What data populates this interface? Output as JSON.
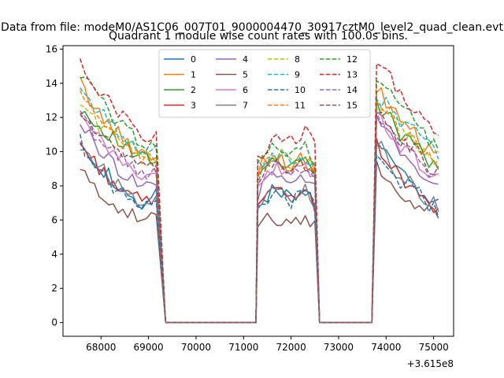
{
  "figure": {
    "suptitle": "Data from file: modeM0/AS1C06_007T01_9000004470_30917cztM0_level2_quad_clean.evt"
  },
  "chart_data": {
    "type": "line",
    "title": "Quadrant 1 module wise count rates with 100.0s bins.",
    "xlabel": "",
    "ylabel": "",
    "x_offset_label": "+3.615e8",
    "xlim": [
      67200,
      75420
    ],
    "ylim": [
      -0.8,
      16.2
    ],
    "xticks": [
      68000,
      69000,
      70000,
      71000,
      72000,
      73000,
      74000,
      75000
    ],
    "xtick_labels": [
      "68000",
      "69000",
      "70000",
      "71000",
      "72000",
      "73000",
      "74000",
      "75000"
    ],
    "yticks": [
      0,
      2,
      4,
      6,
      8,
      10,
      12,
      14,
      16
    ],
    "ytick_labels": [
      "0",
      "2",
      "4",
      "6",
      "8",
      "10",
      "12",
      "14",
      "16"
    ],
    "grid": false,
    "legend": {
      "placement": "top-center",
      "columns": 4
    },
    "segments": [
      {
        "start": 67560,
        "end": 69160
      },
      {
        "start": 71300,
        "end": 72500
      },
      {
        "start": 73800,
        "end": 75060
      }
    ],
    "zero_gaps": [
      {
        "start": 69360,
        "end": 71260
      },
      {
        "start": 72600,
        "end": 73700
      }
    ],
    "series": [
      {
        "name": "0",
        "color": "#1f77b4",
        "dash": false,
        "segments": [
          [
            10.9,
            9.4,
            8.5,
            7.3,
            6.8,
            7.4
          ],
          [
            6.5,
            7.6,
            7.8,
            7.2,
            8.0,
            7.0
          ],
          [
            10.9,
            9.8,
            8.5,
            8.3,
            7.2,
            6.8
          ]
        ]
      },
      {
        "name": "1",
        "color": "#ff7f0e",
        "dash": false,
        "segments": [
          [
            14.0,
            12.5,
            11.5,
            10.6,
            10.0,
            9.8
          ],
          [
            9.0,
            9.8,
            9.5,
            9.2,
            9.6,
            9.0
          ],
          [
            13.6,
            12.8,
            11.5,
            11.2,
            10.2,
            9.8
          ]
        ]
      },
      {
        "name": "2",
        "color": "#2ca02c",
        "dash": false,
        "segments": [
          [
            12.6,
            11.6,
            11.0,
            10.2,
            9.6,
            9.4
          ],
          [
            8.8,
            9.5,
            9.6,
            9.0,
            9.4,
            8.7
          ],
          [
            12.7,
            12.1,
            10.8,
            10.6,
            9.6,
            9.0
          ]
        ]
      },
      {
        "name": "3",
        "color": "#d62728",
        "dash": false,
        "segments": [
          [
            10.5,
            9.3,
            8.4,
            7.5,
            7.1,
            7.3
          ],
          [
            6.7,
            7.5,
            7.6,
            7.0,
            7.8,
            6.9
          ],
          [
            10.4,
            9.4,
            8.3,
            8.1,
            7.0,
            6.6
          ]
        ]
      },
      {
        "name": "4",
        "color": "#9467bd",
        "dash": false,
        "segments": [
          [
            11.7,
            10.4,
            9.5,
            8.6,
            8.1,
            8.2
          ],
          [
            7.6,
            8.4,
            8.6,
            8.0,
            8.6,
            7.8
          ],
          [
            11.8,
            11.0,
            9.6,
            9.4,
            8.4,
            8.0
          ]
        ]
      },
      {
        "name": "5",
        "color": "#8c564b",
        "dash": false,
        "segments": [
          [
            9.0,
            7.7,
            7.2,
            6.4,
            6.0,
            6.3
          ],
          [
            5.8,
            6.0,
            5.9,
            5.8,
            6.3,
            5.8
          ],
          [
            9.2,
            8.3,
            7.1,
            7.0,
            6.6,
            6.2
          ]
        ]
      },
      {
        "name": "6",
        "color": "#e377c2",
        "dash": false,
        "segments": [
          [
            12.0,
            10.9,
            10.0,
            9.2,
            8.6,
            8.6
          ],
          [
            8.2,
            8.9,
            9.0,
            8.6,
            9.1,
            8.3
          ],
          [
            12.1,
            11.3,
            10.0,
            9.8,
            8.8,
            8.4
          ]
        ]
      },
      {
        "name": "7",
        "color": "#7f7f7f",
        "dash": false,
        "segments": [
          [
            10.4,
            9.4,
            8.5,
            7.6,
            7.2,
            7.4
          ],
          [
            6.8,
            7.6,
            7.7,
            7.1,
            7.9,
            7.0
          ],
          [
            10.6,
            9.5,
            8.4,
            8.2,
            7.2,
            6.8
          ]
        ]
      },
      {
        "name": "8",
        "color": "#bcbd22",
        "dash": true,
        "segments": [
          [
            12.9,
            11.8,
            11.1,
            10.4,
            9.8,
            9.6
          ],
          [
            8.9,
            9.7,
            9.8,
            9.3,
            9.7,
            8.9
          ],
          [
            12.9,
            12.4,
            11.2,
            10.8,
            9.8,
            9.3
          ]
        ]
      },
      {
        "name": "9",
        "color": "#17becf",
        "dash": true,
        "segments": [
          [
            13.7,
            12.6,
            11.6,
            10.9,
            10.2,
            10.0
          ],
          [
            9.1,
            9.9,
            9.6,
            9.5,
            9.8,
            9.1
          ],
          [
            13.2,
            12.7,
            11.7,
            11.4,
            10.4,
            9.9
          ]
        ]
      },
      {
        "name": "10",
        "color": "#1f77b4",
        "dash": true,
        "segments": [
          [
            10.6,
            9.2,
            8.0,
            7.4,
            7.0,
            7.3
          ],
          [
            6.6,
            7.4,
            7.5,
            7.0,
            7.7,
            6.9
          ],
          [
            10.2,
            9.2,
            8.2,
            8.0,
            7.0,
            6.6
          ]
        ]
      },
      {
        "name": "11",
        "color": "#ff7f0e",
        "dash": true,
        "segments": [
          [
            13.3,
            12.0,
            11.0,
            10.2,
            9.7,
            9.6
          ],
          [
            8.7,
            9.6,
            9.3,
            9.0,
            9.3,
            8.7
          ],
          [
            13.0,
            12.5,
            11.1,
            10.8,
            9.8,
            9.4
          ]
        ]
      },
      {
        "name": "12",
        "color": "#2ca02c",
        "dash": true,
        "segments": [
          [
            14.6,
            13.5,
            12.1,
            11.4,
            10.6,
            10.4
          ],
          [
            9.3,
            10.0,
            10.2,
            10.0,
            10.5,
            9.4
          ],
          [
            14.3,
            13.7,
            12.5,
            12.0,
            10.9,
            10.4
          ]
        ]
      },
      {
        "name": "13",
        "color": "#d62728",
        "dash": true,
        "segments": [
          [
            15.0,
            14.0,
            12.8,
            11.9,
            11.0,
            10.8
          ],
          [
            9.6,
            10.6,
            10.8,
            10.6,
            11.2,
            10.4
          ],
          [
            15.3,
            14.5,
            13.1,
            12.6,
            11.5,
            11.0
          ]
        ]
      },
      {
        "name": "14",
        "color": "#9467bd",
        "dash": true,
        "segments": [
          [
            12.1,
            11.0,
            10.1,
            9.4,
            8.8,
            8.8
          ],
          [
            8.4,
            9.2,
            9.3,
            8.8,
            9.3,
            8.5
          ],
          [
            12.2,
            11.5,
            10.2,
            10.0,
            9.0,
            8.6
          ]
        ]
      },
      {
        "name": "15",
        "color": "#8c564b",
        "dash": true,
        "segments": [
          [
            12.3,
            11.3,
            10.4,
            9.6,
            9.0,
            9.0
          ],
          [
            8.5,
            9.3,
            9.4,
            8.9,
            9.4,
            8.6
          ],
          [
            12.4,
            11.7,
            10.4,
            10.2,
            9.2,
            8.8
          ]
        ]
      }
    ]
  }
}
